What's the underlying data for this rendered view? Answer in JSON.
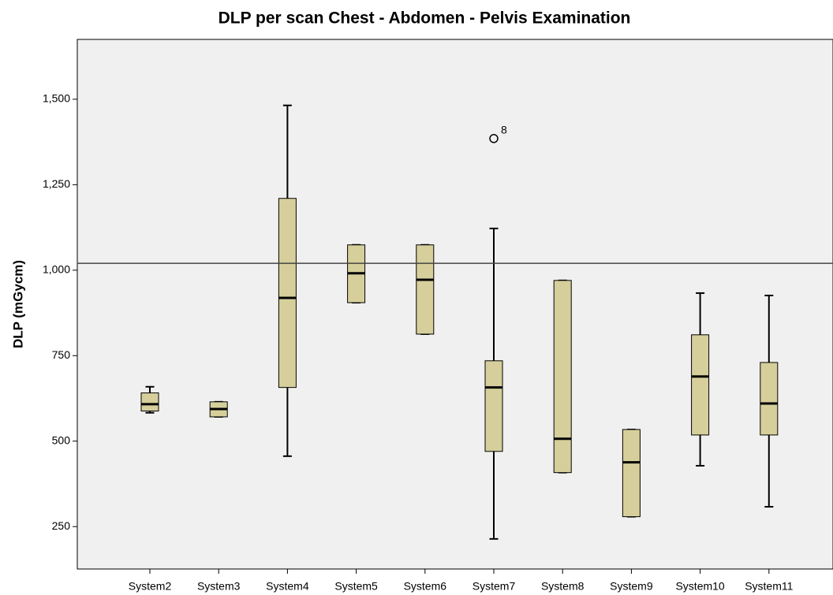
{
  "chart_data": {
    "type": "box",
    "title": "DLP per scan Chest - Abdomen - Pelvis Examination",
    "y_label": "DLP (mGycm)",
    "categories": [
      "System2",
      "System3",
      "System4",
      "System5",
      "System6",
      "System7",
      "System8",
      "System9",
      "System10",
      "System11"
    ],
    "boxes": [
      {
        "min": 583,
        "q1": 588,
        "median": 608,
        "q3": 641,
        "max": 659
      },
      {
        "min": 571,
        "q1": 571,
        "median": 594,
        "q3": 615,
        "max": 615
      },
      {
        "min": 456,
        "q1": 657,
        "median": 919,
        "q3": 1210,
        "max": 1482
      },
      {
        "min": 905,
        "q1": 905,
        "median": 991,
        "q3": 1074,
        "max": 1074
      },
      {
        "min": 813,
        "q1": 813,
        "median": 972,
        "q3": 1074,
        "max": 1074
      },
      {
        "min": 214,
        "q1": 470,
        "median": 657,
        "q3": 735,
        "max": 1122
      },
      {
        "min": 408,
        "q1": 408,
        "median": 507,
        "q3": 970,
        "max": 970
      },
      {
        "min": 279,
        "q1": 279,
        "median": 438,
        "q3": 534,
        "max": 534
      },
      {
        "min": 428,
        "q1": 518,
        "median": 689,
        "q3": 811,
        "max": 933
      },
      {
        "min": 308,
        "q1": 518,
        "median": 610,
        "q3": 730,
        "max": 926
      }
    ],
    "outliers": [
      {
        "category": "System7",
        "value": 1385,
        "label": "8"
      }
    ],
    "reference_line": 1020,
    "color": "#d6cf9b",
    "ylim": [
      126,
      1675
    ],
    "yticks": [
      {
        "value": 250,
        "label": "250"
      },
      {
        "value": 500,
        "label": "500"
      },
      {
        "value": 750,
        "label": "750"
      },
      {
        "value": 1000,
        "label": "1,000"
      },
      {
        "value": 1250,
        "label": "1,250"
      },
      {
        "value": 1500,
        "label": "1,500"
      }
    ]
  }
}
